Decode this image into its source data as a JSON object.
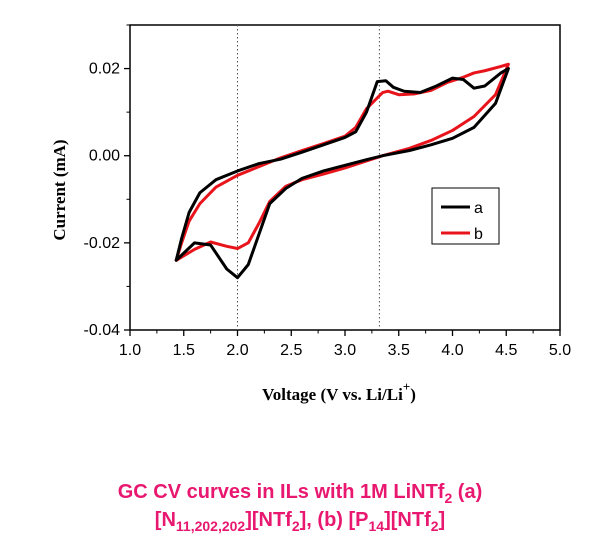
{
  "chart_data": {
    "type": "line",
    "xlabel": "Voltage (V vs. Li/Li",
    "xlabel_sup": "+",
    "xlabel_end": ")",
    "ylabel": "Current (mA)",
    "xlim": [
      1.0,
      5.0
    ],
    "ylim": [
      -0.04,
      0.03
    ],
    "x_ticks": [
      "1.0",
      "1.5",
      "2.0",
      "2.5",
      "3.0",
      "3.5",
      "4.0",
      "4.5",
      "5.0"
    ],
    "y_ticks": [
      "0.02",
      "0.00",
      "-0.02",
      "-0.04"
    ],
    "reference_lines_x": [
      2.0,
      3.32
    ],
    "legend_position": "right",
    "series": [
      {
        "name": "a",
        "color": "#000000",
        "points": [
          [
            1.43,
            -0.024
          ],
          [
            1.6,
            -0.02
          ],
          [
            1.75,
            -0.0205
          ],
          [
            1.9,
            -0.026
          ],
          [
            2.0,
            -0.028
          ],
          [
            2.1,
            -0.025
          ],
          [
            2.2,
            -0.018
          ],
          [
            2.3,
            -0.011
          ],
          [
            2.45,
            -0.0075
          ],
          [
            2.6,
            -0.0052
          ],
          [
            2.8,
            -0.0035
          ],
          [
            3.0,
            -0.0022
          ],
          [
            3.2,
            -0.0009
          ],
          [
            3.35,
            0.0
          ],
          [
            3.6,
            0.0012
          ],
          [
            3.8,
            0.0025
          ],
          [
            4.0,
            0.004
          ],
          [
            4.2,
            0.0065
          ],
          [
            4.4,
            0.012
          ],
          [
            4.52,
            0.02
          ],
          [
            4.45,
            0.019
          ],
          [
            4.3,
            0.016
          ],
          [
            4.2,
            0.0155
          ],
          [
            4.1,
            0.0175
          ],
          [
            4.0,
            0.0178
          ],
          [
            3.85,
            0.016
          ],
          [
            3.7,
            0.0145
          ],
          [
            3.55,
            0.0148
          ],
          [
            3.45,
            0.0157
          ],
          [
            3.38,
            0.0172
          ],
          [
            3.3,
            0.017
          ],
          [
            3.2,
            0.01
          ],
          [
            3.1,
            0.0055
          ],
          [
            3.0,
            0.0042
          ],
          [
            2.8,
            0.0025
          ],
          [
            2.6,
            0.0008
          ],
          [
            2.4,
            -0.0008
          ],
          [
            2.2,
            -0.0018
          ],
          [
            2.0,
            -0.0035
          ],
          [
            1.8,
            -0.0055
          ],
          [
            1.65,
            -0.0085
          ],
          [
            1.55,
            -0.013
          ],
          [
            1.48,
            -0.019
          ],
          [
            1.43,
            -0.024
          ]
        ]
      },
      {
        "name": "b",
        "color": "#e8141b",
        "points": [
          [
            1.43,
            -0.024
          ],
          [
            1.6,
            -0.0215
          ],
          [
            1.75,
            -0.0198
          ],
          [
            1.9,
            -0.0208
          ],
          [
            2.0,
            -0.0213
          ],
          [
            2.1,
            -0.02
          ],
          [
            2.2,
            -0.0155
          ],
          [
            2.3,
            -0.0105
          ],
          [
            2.45,
            -0.007
          ],
          [
            2.6,
            -0.0055
          ],
          [
            2.8,
            -0.0042
          ],
          [
            3.0,
            -0.0028
          ],
          [
            3.2,
            -0.0012
          ],
          [
            3.35,
            0.0
          ],
          [
            3.6,
            0.0017
          ],
          [
            3.8,
            0.0035
          ],
          [
            4.0,
            0.0058
          ],
          [
            4.2,
            0.009
          ],
          [
            4.4,
            0.014
          ],
          [
            4.52,
            0.021
          ],
          [
            4.45,
            0.0205
          ],
          [
            4.3,
            0.0195
          ],
          [
            4.2,
            0.019
          ],
          [
            4.1,
            0.018
          ],
          [
            3.95,
            0.0168
          ],
          [
            3.8,
            0.015
          ],
          [
            3.65,
            0.0142
          ],
          [
            3.5,
            0.014
          ],
          [
            3.4,
            0.0148
          ],
          [
            3.35,
            0.0145
          ],
          [
            3.2,
            0.0108
          ],
          [
            3.1,
            0.0065
          ],
          [
            3.0,
            0.0045
          ],
          [
            2.8,
            0.0028
          ],
          [
            2.6,
            0.0012
          ],
          [
            2.4,
            -0.0005
          ],
          [
            2.2,
            -0.0025
          ],
          [
            2.0,
            -0.0045
          ],
          [
            1.8,
            -0.0072
          ],
          [
            1.65,
            -0.011
          ],
          [
            1.55,
            -0.015
          ],
          [
            1.48,
            -0.02
          ],
          [
            1.43,
            -0.024
          ]
        ]
      }
    ]
  },
  "caption": {
    "line1_pre": "GC CV curves in ILs with 1M LiNTf",
    "line1_sub": "2",
    "line1_post": " (a)",
    "line2_open1": "[N",
    "line2_sub1": "11,202,202",
    "line2_mid1": "][NTf",
    "line2_sub2": "2",
    "line2_mid2": "], (b) [P",
    "line2_sub3": "14",
    "line2_mid3": "][NTf",
    "line2_sub4": "2",
    "line2_close": "]"
  }
}
